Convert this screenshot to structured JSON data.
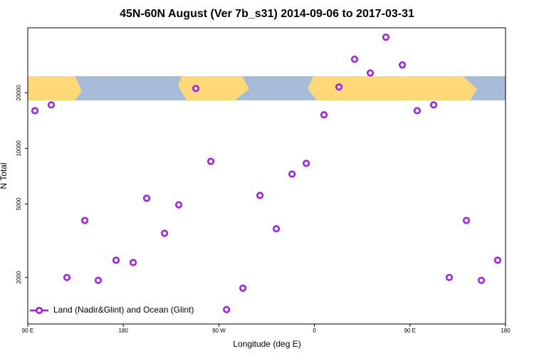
{
  "chart_data": {
    "type": "scatter",
    "title": "45N-60N August (Ver 7b_s31)   2014-09-06 to 2017-03-31",
    "x_label": "Longitude (deg E)",
    "y_label": "N Total",
    "y_scale": "log",
    "legend": "bottom-left",
    "xlim": [
      90,
      540
    ],
    "xticks": [
      {
        "value": 90,
        "label": "90 E"
      },
      180,
      {
        "value": 270,
        "label": "90 W"
      },
      {
        "value": 360,
        "label": "0"
      },
      {
        "value": 450,
        "label": "90 E"
      },
      {
        "value": 540,
        "label": "180"
      }
    ],
    "ylim": [
      1120,
      45000
    ],
    "yticks": [
      2000,
      5000,
      10000,
      20000
    ],
    "series": [
      {
        "name": "Land (Nadir&Glint) and Ocean (Glint)",
        "color": "#a020f0",
        "x": [
          96.7,
          112.1,
          126.9,
          143.7,
          156.4,
          173.2,
          189.3,
          202.0,
          218.8,
          232.2,
          248.3,
          262.4,
          277.2,
          292.6,
          308.7,
          324.1,
          338.9,
          352.3,
          369.0,
          383.1,
          397.8,
          412.6,
          427.3,
          442.8,
          456.8,
          472.3,
          487.0,
          503.1,
          517.2,
          532.6
        ],
        "values": [
          16000,
          17200,
          2000,
          4070,
          1930,
          2480,
          2410,
          5370,
          3470,
          4950,
          21100,
          8510,
          1340,
          1750,
          5560,
          3670,
          7260,
          8300,
          15200,
          21500,
          30400,
          25600,
          40000,
          28300,
          16000,
          17200,
          2000,
          4070,
          1930,
          2480
        ]
      }
    ]
  }
}
